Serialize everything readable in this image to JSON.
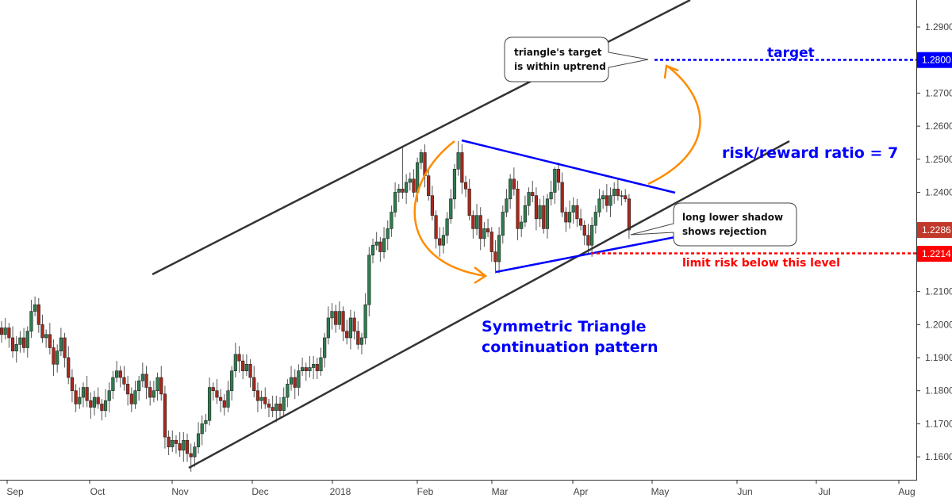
{
  "chart_data": {
    "type": "candlestick",
    "instrument_quote_axis": "right",
    "ylim": [
      1.152,
      1.298
    ],
    "y_ticks": [
      "1.2900",
      "1.2800",
      "1.2700",
      "1.2600",
      "1.2500",
      "1.2400",
      "1.2300",
      "1.2200",
      "1.2100",
      "1.2000",
      "1.1900",
      "1.1800",
      "1.1700",
      "1.1600"
    ],
    "x_ticks": [
      "Sep",
      "Oct",
      "Nov",
      "Dec",
      "2018",
      "Feb",
      "Mar",
      "Apr",
      "May",
      "Jun",
      "Jul",
      "Aug"
    ],
    "colors": {
      "up": "#2f7d4f",
      "down": "#a8281c",
      "wick": "#555555",
      "channel": "#333333",
      "triangle": "#0000ff",
      "arrow": "#ff8c00",
      "target": "#0000ff",
      "risk": "#ff0000",
      "last_price": "#c0392b"
    },
    "open": [
      1.199,
      1.197,
      1.199,
      1.196,
      1.192,
      1.194,
      1.196,
      1.193,
      1.198,
      1.204,
      1.206,
      1.2,
      1.196,
      1.197,
      1.193,
      1.188,
      1.192,
      1.196,
      1.19,
      1.184,
      1.18,
      1.176,
      1.178,
      1.181,
      1.177,
      1.175,
      1.178,
      1.176,
      1.174,
      1.177,
      1.18,
      1.184,
      1.186,
      1.184,
      1.182,
      1.179,
      1.176,
      1.18,
      1.183,
      1.185,
      1.181,
      1.178,
      1.18,
      1.184,
      1.179,
      1.166,
      1.163,
      1.165,
      1.164,
      1.162,
      1.165,
      1.161,
      1.16,
      1.163,
      1.167,
      1.17,
      1.171,
      1.181,
      1.18,
      1.178,
      1.177,
      1.175,
      1.18,
      1.186,
      1.191,
      1.189,
      1.186,
      1.188,
      1.184,
      1.18,
      1.177,
      1.178,
      1.176,
      1.175,
      1.174,
      1.176,
      1.174,
      1.178,
      1.182,
      1.184,
      1.181,
      1.186,
      1.187,
      1.186,
      1.187,
      1.188,
      1.186,
      1.19,
      1.196,
      1.202,
      1.204,
      1.2,
      1.204,
      1.198,
      1.196,
      1.202,
      1.198,
      1.194,
      1.196,
      1.206,
      1.221,
      1.224,
      1.225,
      1.222,
      1.226,
      1.229,
      1.234,
      1.24,
      1.241,
      1.24,
      1.243,
      1.244,
      1.24,
      1.249,
      1.252,
      1.245,
      1.239,
      1.233,
      1.226,
      1.224,
      1.227,
      1.232,
      1.238,
      1.247,
      1.252,
      1.243,
      1.241,
      1.233,
      1.229,
      1.233,
      1.226,
      1.229,
      1.228,
      1.222,
      1.219,
      1.227,
      1.234,
      1.238,
      1.244,
      1.241,
      1.229,
      1.231,
      1.236,
      1.24,
      1.239,
      1.232,
      1.236,
      1.229,
      1.238,
      1.24,
      1.247,
      1.243,
      1.234,
      1.231,
      1.234,
      1.236,
      1.232,
      1.23,
      1.227,
      1.224,
      1.23,
      1.234,
      1.238,
      1.239,
      1.236,
      1.239,
      1.241,
      1.239,
      1.239,
      1.238
    ],
    "high": [
      1.201,
      1.202,
      1.2005,
      1.1995,
      1.1965,
      1.198,
      1.199,
      1.1995,
      1.2075,
      1.2085,
      1.208,
      1.203,
      1.1985,
      1.2005,
      1.1955,
      1.194,
      1.199,
      1.1975,
      1.1935,
      1.1865,
      1.182,
      1.181,
      1.1825,
      1.1845,
      1.1795,
      1.18,
      1.181,
      1.1775,
      1.1805,
      1.1825,
      1.186,
      1.189,
      1.1875,
      1.1875,
      1.1845,
      1.181,
      1.183,
      1.1845,
      1.1885,
      1.1875,
      1.183,
      1.183,
      1.1855,
      1.1875,
      1.1815,
      1.168,
      1.168,
      1.1665,
      1.1675,
      1.1675,
      1.167,
      1.164,
      1.1645,
      1.1705,
      1.1725,
      1.173,
      1.184,
      1.1825,
      1.1835,
      1.1805,
      1.179,
      1.183,
      1.1875,
      1.1945,
      1.1935,
      1.191,
      1.191,
      1.1895,
      1.1875,
      1.1825,
      1.18,
      1.181,
      1.1775,
      1.1785,
      1.1785,
      1.178,
      1.181,
      1.1835,
      1.1875,
      1.1865,
      1.188,
      1.19,
      1.1885,
      1.1905,
      1.1905,
      1.19,
      1.193,
      1.1975,
      1.2055,
      1.2065,
      1.206,
      1.207,
      1.2055,
      1.2015,
      1.2045,
      1.204,
      1.201,
      1.1975,
      1.2095,
      1.2235,
      1.226,
      1.228,
      1.2265,
      1.2295,
      1.2315,
      1.236,
      1.243,
      1.2425,
      1.2537,
      1.2455,
      1.246,
      1.247,
      1.2505,
      1.253,
      1.2545,
      1.247,
      1.242,
      1.2345,
      1.2295,
      1.2295,
      1.234,
      1.241,
      1.2485,
      1.2555,
      1.2545,
      1.245,
      1.244,
      1.2345,
      1.2365,
      1.2355,
      1.231,
      1.232,
      1.2295,
      1.2255,
      1.2295,
      1.236,
      1.241,
      1.2455,
      1.2475,
      1.2435,
      1.233,
      1.239,
      1.2415,
      1.2435,
      1.2415,
      1.238,
      1.239,
      1.2395,
      1.2435,
      1.2476,
      1.249,
      1.246,
      1.2355,
      1.2375,
      1.2385,
      1.238,
      1.235,
      1.2315,
      1.2305,
      1.2325,
      1.236,
      1.241,
      1.2405,
      1.2425,
      1.2415,
      1.243,
      1.244,
      1.2405,
      1.241,
      1.2395
    ],
    "low": [
      1.1945,
      1.1955,
      1.193,
      1.19,
      1.1885,
      1.1915,
      1.1915,
      1.19,
      1.196,
      1.2025,
      1.1975,
      1.1945,
      1.193,
      1.191,
      1.1845,
      1.1855,
      1.1905,
      1.187,
      1.182,
      1.1765,
      1.1735,
      1.1745,
      1.175,
      1.175,
      1.1715,
      1.1725,
      1.1745,
      1.171,
      1.172,
      1.1735,
      1.1775,
      1.1825,
      1.181,
      1.18,
      1.1755,
      1.1735,
      1.1745,
      1.177,
      1.181,
      1.1775,
      1.1755,
      1.1765,
      1.177,
      1.177,
      1.1625,
      1.1605,
      1.1615,
      1.161,
      1.16,
      1.1585,
      1.1585,
      1.1555,
      1.157,
      1.161,
      1.1635,
      1.1675,
      1.1695,
      1.177,
      1.176,
      1.1735,
      1.1725,
      1.1735,
      1.177,
      1.184,
      1.1855,
      1.1835,
      1.1845,
      1.181,
      1.178,
      1.1735,
      1.1745,
      1.1745,
      1.172,
      1.172,
      1.1705,
      1.1715,
      1.1725,
      1.175,
      1.18,
      1.1775,
      1.1785,
      1.1845,
      1.183,
      1.184,
      1.1835,
      1.1835,
      1.1845,
      1.187,
      1.194,
      1.1985,
      1.1975,
      1.1985,
      1.195,
      1.194,
      1.1925,
      1.1955,
      1.1925,
      1.191,
      1.194,
      1.2025,
      1.2185,
      1.2225,
      1.219,
      1.22,
      1.2225,
      1.2265,
      1.2325,
      1.237,
      1.238,
      1.2365,
      1.2405,
      1.2385,
      1.237,
      1.247,
      1.2415,
      1.2375,
      1.2315,
      1.223,
      1.2205,
      1.2215,
      1.2245,
      1.2305,
      1.235,
      1.245,
      1.2395,
      1.2385,
      1.2315,
      1.226,
      1.227,
      1.2225,
      1.2235,
      1.2265,
      1.219,
      1.2155,
      1.2155,
      1.2245,
      1.2325,
      1.235,
      1.239,
      1.2255,
      1.2265,
      1.2295,
      1.233,
      1.237,
      1.2285,
      1.2295,
      1.2275,
      1.226,
      1.236,
      1.2365,
      1.2405,
      1.2325,
      1.228,
      1.229,
      1.2305,
      1.2295,
      1.2285,
      1.224,
      1.2215,
      1.2205,
      1.2275,
      1.2325,
      1.235,
      1.234,
      1.2325,
      1.2365,
      1.2375,
      1.236,
      1.237,
      1.226
    ],
    "close": [
      1.197,
      1.199,
      1.196,
      1.192,
      1.194,
      1.196,
      1.193,
      1.198,
      1.204,
      1.206,
      1.2,
      1.196,
      1.197,
      1.193,
      1.188,
      1.192,
      1.196,
      1.19,
      1.184,
      1.18,
      1.176,
      1.178,
      1.181,
      1.177,
      1.175,
      1.178,
      1.176,
      1.174,
      1.177,
      1.18,
      1.184,
      1.186,
      1.184,
      1.182,
      1.179,
      1.176,
      1.18,
      1.183,
      1.185,
      1.181,
      1.178,
      1.18,
      1.184,
      1.179,
      1.166,
      1.163,
      1.165,
      1.164,
      1.162,
      1.165,
      1.161,
      1.16,
      1.163,
      1.167,
      1.17,
      1.171,
      1.181,
      1.18,
      1.178,
      1.177,
      1.175,
      1.18,
      1.186,
      1.191,
      1.189,
      1.186,
      1.188,
      1.184,
      1.18,
      1.177,
      1.178,
      1.176,
      1.175,
      1.174,
      1.176,
      1.174,
      1.178,
      1.182,
      1.184,
      1.181,
      1.186,
      1.187,
      1.186,
      1.187,
      1.188,
      1.186,
      1.19,
      1.196,
      1.202,
      1.204,
      1.2,
      1.204,
      1.198,
      1.196,
      1.202,
      1.198,
      1.194,
      1.196,
      1.206,
      1.221,
      1.224,
      1.225,
      1.222,
      1.226,
      1.229,
      1.234,
      1.24,
      1.241,
      1.24,
      1.243,
      1.244,
      1.24,
      1.249,
      1.252,
      1.245,
      1.239,
      1.233,
      1.226,
      1.224,
      1.227,
      1.232,
      1.238,
      1.247,
      1.252,
      1.243,
      1.241,
      1.233,
      1.229,
      1.233,
      1.226,
      1.229,
      1.228,
      1.222,
      1.219,
      1.227,
      1.234,
      1.238,
      1.244,
      1.241,
      1.229,
      1.231,
      1.236,
      1.24,
      1.239,
      1.232,
      1.236,
      1.229,
      1.238,
      1.24,
      1.247,
      1.243,
      1.234,
      1.231,
      1.234,
      1.236,
      1.232,
      1.23,
      1.227,
      1.224,
      1.23,
      1.234,
      1.238,
      1.239,
      1.236,
      1.239,
      1.241,
      1.239,
      1.239,
      1.238,
      1.2286
    ],
    "price_labels": [
      {
        "value": "1.2800",
        "meaning": "target",
        "color": "#0000ff"
      },
      {
        "value": "1.2286",
        "meaning": "last",
        "color": "#c0392b"
      },
      {
        "value": "1.2214",
        "meaning": "risk",
        "color": "#ff0000"
      }
    ],
    "levels": {
      "target": 1.28,
      "risk": 1.2214
    },
    "annotations": {
      "callout_target": [
        "triangle's target",
        "is within uptrend"
      ],
      "target": "target",
      "risk_reward": "risk/reward ratio = 7",
      "callout_shadow": [
        "long lower shadow",
        "shows rejection"
      ],
      "limit_risk": "limit risk below this level",
      "pattern": [
        "Symmetric Triangle",
        "continuation pattern"
      ]
    }
  }
}
